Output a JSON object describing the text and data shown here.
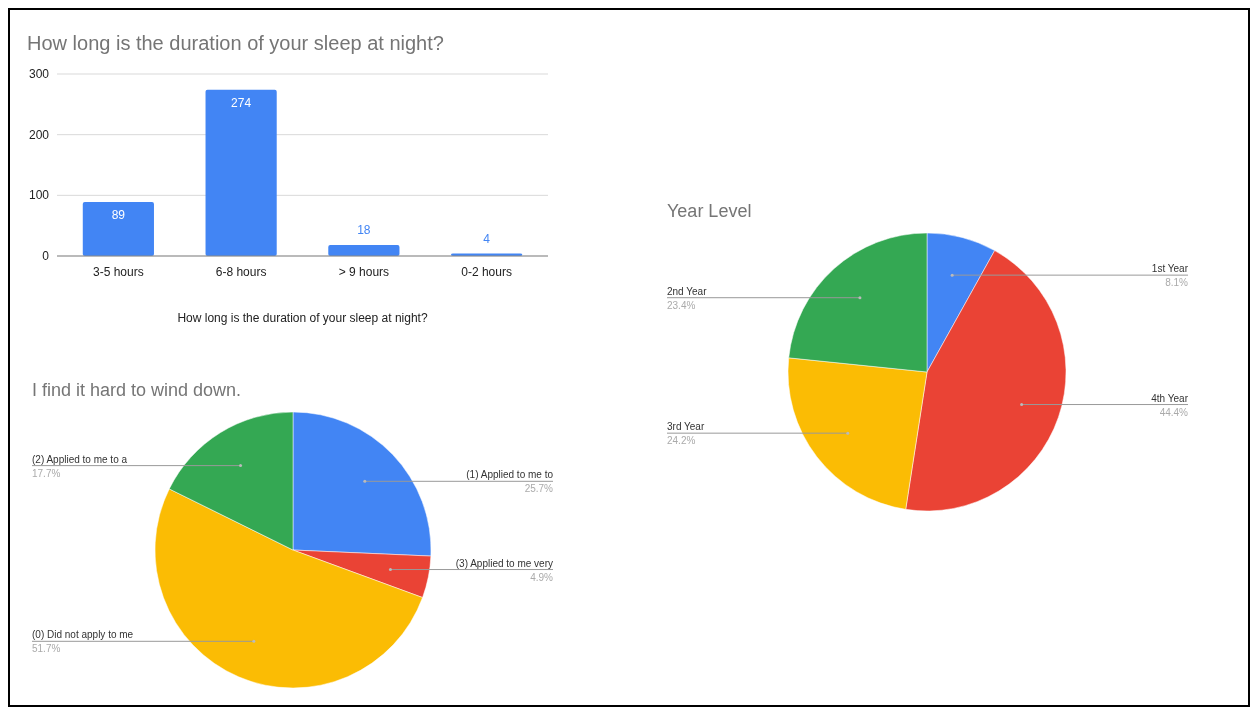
{
  "chart_data": [
    {
      "type": "bar",
      "title": "How long is the duration of your sleep at night?",
      "xlabel": "How long is the duration of your sleep at night?",
      "categories": [
        "3-5 hours",
        "6-8 hours",
        "> 9 hours",
        "0-2 hours"
      ],
      "values": [
        89,
        274,
        18,
        4
      ],
      "color": "#4285f4",
      "ylim": [
        0,
        300
      ],
      "yticks": [
        0,
        100,
        200,
        300
      ],
      "grid": "y",
      "data_labels": true
    },
    {
      "type": "pie",
      "title": "I find it hard to wind down.",
      "categories": [
        "(1) Applied to me to",
        "(3) Applied to me very",
        "(0) Did not apply to me",
        "(2) Applied to me to a"
      ],
      "values": [
        25.7,
        4.9,
        51.7,
        17.7
      ],
      "colors": [
        "#4285f4",
        "#ea4335",
        "#fbbc04",
        "#34a853"
      ],
      "value_labels": [
        "25.7%",
        "4.9%",
        "51.7%",
        "17.7%"
      ]
    },
    {
      "type": "pie",
      "title": "Year Level",
      "categories": [
        "1st Year",
        "4th Year",
        "3rd Year",
        "2nd Year"
      ],
      "values": [
        8.1,
        44.4,
        24.2,
        23.4
      ],
      "colors": [
        "#4285f4",
        "#ea4335",
        "#fbbc04",
        "#34a853"
      ],
      "value_labels": [
        "8.1%",
        "44.4%",
        "24.2%",
        "23.4%"
      ]
    }
  ]
}
